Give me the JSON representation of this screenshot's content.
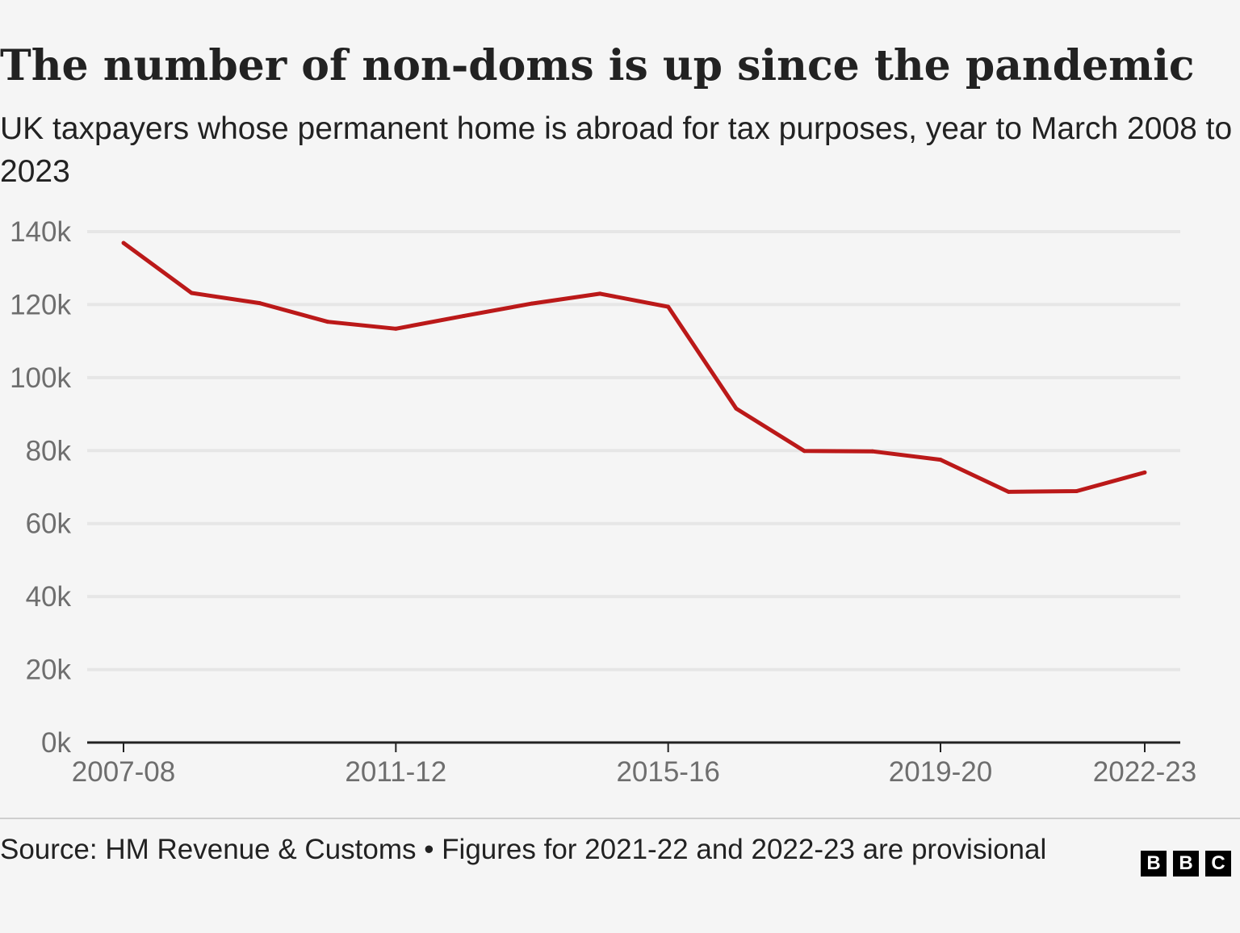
{
  "header": {
    "title": "The number of non-doms is up since the pandemic",
    "subtitle": "UK taxpayers whose permanent home is abroad for tax purposes, year to March 2008 to 2023"
  },
  "footer": {
    "source": "Source: HM Revenue & Customs • Figures for 2021-22 and 2022-23 are provisional",
    "logo_letters": [
      "B",
      "B",
      "C"
    ]
  },
  "colors": {
    "line": "#bb1919",
    "grid": "#e6e6e6",
    "axis": "#222222",
    "tick_text": "#6e6e6e"
  },
  "chart_data": {
    "type": "line",
    "title": "The number of non-doms is up since the pandemic",
    "xlabel": "",
    "ylabel": "",
    "x": [
      "2007-08",
      "2008-09",
      "2009-10",
      "2010-11",
      "2011-12",
      "2012-13",
      "2013-14",
      "2014-15",
      "2015-16",
      "2016-17",
      "2017-18",
      "2018-19",
      "2019-20",
      "2020-21",
      "2021-22",
      "2022-23"
    ],
    "x_tick_labels": [
      "2007-08",
      "2011-12",
      "2015-16",
      "2019-20",
      "2022-23"
    ],
    "series": [
      {
        "name": "Non-doms",
        "values": [
          136900,
          123200,
          120400,
          115300,
          113400,
          116900,
          120300,
          123000,
          119400,
          91500,
          79900,
          79800,
          77500,
          68700,
          68900,
          74000
        ]
      }
    ],
    "ylim": [
      0,
      140000
    ],
    "y_ticks": [
      0,
      20000,
      40000,
      60000,
      80000,
      100000,
      120000,
      140000
    ],
    "y_tick_labels": [
      "0k",
      "20k",
      "40k",
      "60k",
      "80k",
      "100k",
      "120k",
      "140k"
    ],
    "grid": true,
    "legend": "none"
  }
}
